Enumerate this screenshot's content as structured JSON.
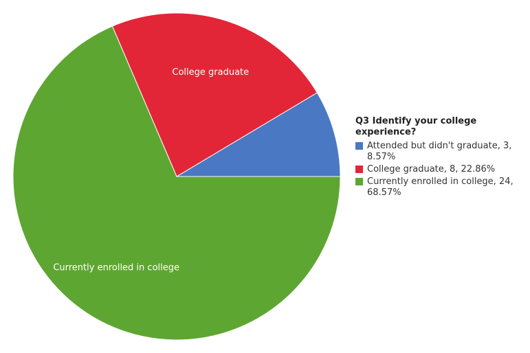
{
  "chart_data": {
    "type": "pie",
    "title": "Q3 Identify your college experience?",
    "categories": [
      "Attended but didn't graduate",
      "College graduate",
      "Currently enrolled in college"
    ],
    "values": [
      8.57,
      22.86,
      68.57
    ],
    "colors": [
      "#4a78c2",
      "#e22637",
      "#5ea632"
    ],
    "slice_labels": [
      null,
      "College graduate",
      "Currently enrolled in college"
    ],
    "legend_labels": [
      "Attended but didn't graduate, 3, 8.57%",
      "College graduate, 8, 22.86%",
      "Currently enrolled in college, 24, 68.57%"
    ]
  }
}
